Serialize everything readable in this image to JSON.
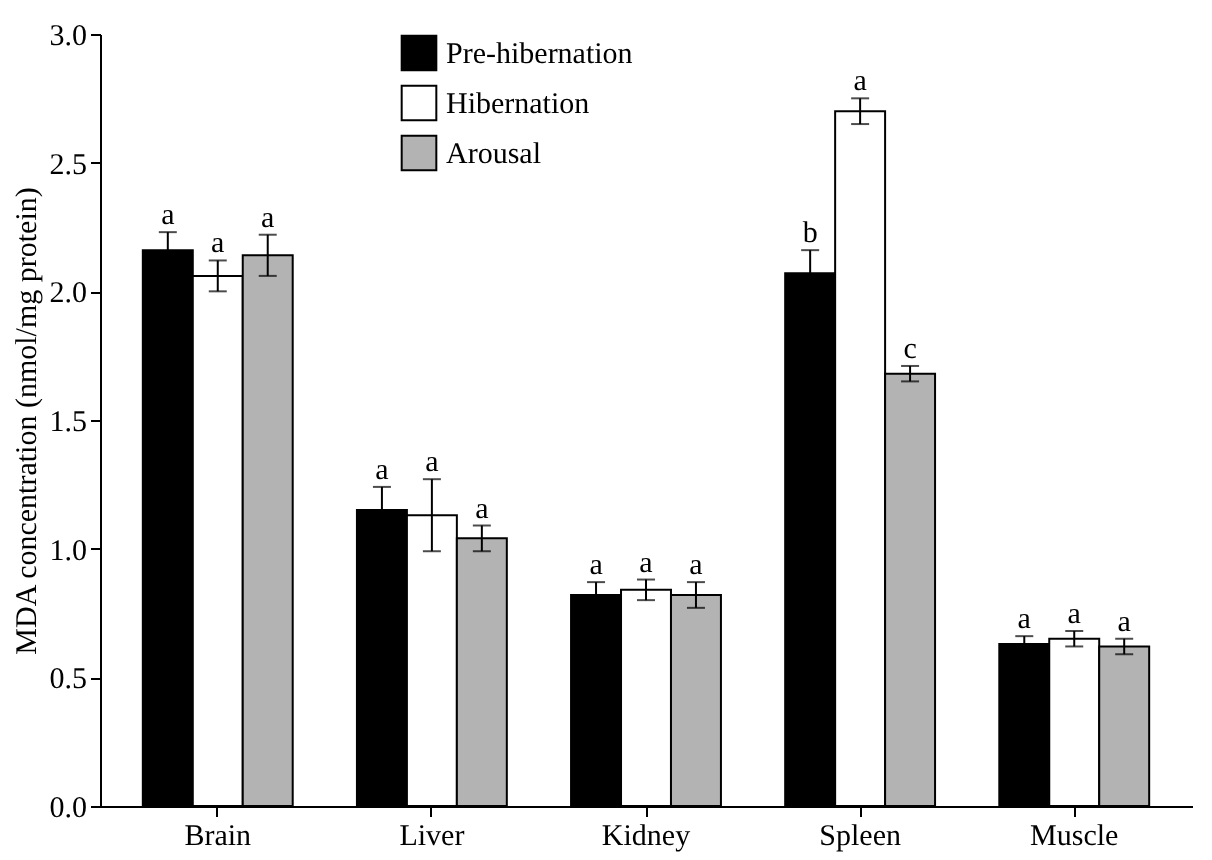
{
  "chart_data": {
    "type": "bar",
    "ylabel": "MDA concentration (nmol/mg protein)",
    "categories": [
      "Brain",
      "Liver",
      "Kidney",
      "Spleen",
      "Muscle"
    ],
    "series": [
      {
        "name": "Pre-hibernation",
        "color": "#000000",
        "values": [
          2.16,
          1.15,
          0.82,
          2.07,
          0.63
        ],
        "errors": [
          0.07,
          0.09,
          0.05,
          0.09,
          0.03
        ]
      },
      {
        "name": "Hibernation",
        "color": "#ffffff",
        "values": [
          2.06,
          1.13,
          0.84,
          2.7,
          0.65
        ],
        "errors": [
          0.06,
          0.14,
          0.04,
          0.05,
          0.03
        ]
      },
      {
        "name": "Arousal",
        "color": "#b3b3b3",
        "values": [
          2.14,
          1.04,
          0.82,
          1.68,
          0.62
        ],
        "errors": [
          0.08,
          0.05,
          0.05,
          0.03,
          0.03
        ]
      }
    ],
    "ylim": [
      0,
      3.0
    ],
    "yticks": [
      {
        "value": 0,
        "label": "0.0"
      },
      {
        "value": 0.5,
        "label": "0.5"
      },
      {
        "value": 1.0,
        "label": "1.0"
      },
      {
        "value": 1.5,
        "label": "1.5"
      },
      {
        "value": 2.0,
        "label": "2.0"
      },
      {
        "value": 2.5,
        "label": "2.5"
      },
      {
        "value": 3.0,
        "label": "3.0"
      }
    ],
    "legend": "top",
    "grid": false,
    "annotations": [
      "a",
      "a",
      "a",
      "a",
      "a",
      "a",
      "a",
      "a",
      "a",
      "b",
      "a",
      "c",
      "a",
      "a",
      "a"
    ]
  }
}
